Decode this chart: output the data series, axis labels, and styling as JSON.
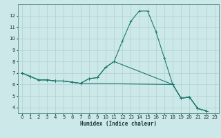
{
  "xlabel": "Humidex (Indice chaleur)",
  "background_color": "#cce8e8",
  "grid_color": "#b0d0d0",
  "line_color": "#1a7a6e",
  "x_data": [
    0,
    1,
    2,
    3,
    4,
    5,
    6,
    7,
    8,
    9,
    10,
    11,
    12,
    13,
    14,
    15,
    16,
    17,
    18,
    19,
    20,
    21,
    22,
    23
  ],
  "line1_x": [
    0,
    1,
    2,
    3,
    4,
    5,
    6,
    7,
    8,
    9,
    10,
    11,
    12,
    13,
    14,
    15,
    16,
    17,
    18,
    19,
    20,
    21,
    22
  ],
  "line1_y": [
    7.0,
    6.7,
    6.4,
    6.4,
    6.3,
    6.3,
    6.2,
    6.1,
    6.5,
    6.6,
    7.5,
    8.0,
    9.8,
    11.5,
    12.4,
    12.4,
    10.6,
    8.3,
    6.0,
    4.8,
    4.9,
    3.9,
    3.7
  ],
  "line2_x": [
    0,
    1,
    2,
    3,
    4,
    5,
    6,
    7,
    8,
    9,
    10,
    11,
    18,
    19,
    20,
    21,
    22
  ],
  "line2_y": [
    7.0,
    6.7,
    6.4,
    6.4,
    6.3,
    6.3,
    6.2,
    6.1,
    6.5,
    6.6,
    7.5,
    8.0,
    6.0,
    4.8,
    4.9,
    3.9,
    3.7
  ],
  "line3_x": [
    0,
    1,
    2,
    3,
    4,
    5,
    6,
    7,
    18,
    19,
    20,
    21,
    22
  ],
  "line3_y": [
    7.0,
    6.7,
    6.4,
    6.4,
    6.3,
    6.3,
    6.2,
    6.1,
    6.0,
    4.8,
    4.9,
    3.9,
    3.7
  ],
  "xlim": [
    -0.5,
    23.5
  ],
  "ylim": [
    3.5,
    13.0
  ],
  "yticks": [
    4,
    5,
    6,
    7,
    8,
    9,
    10,
    11,
    12
  ],
  "xticks": [
    0,
    1,
    2,
    3,
    4,
    5,
    6,
    7,
    8,
    9,
    10,
    11,
    12,
    13,
    14,
    15,
    16,
    17,
    18,
    19,
    20,
    21,
    22,
    23
  ]
}
